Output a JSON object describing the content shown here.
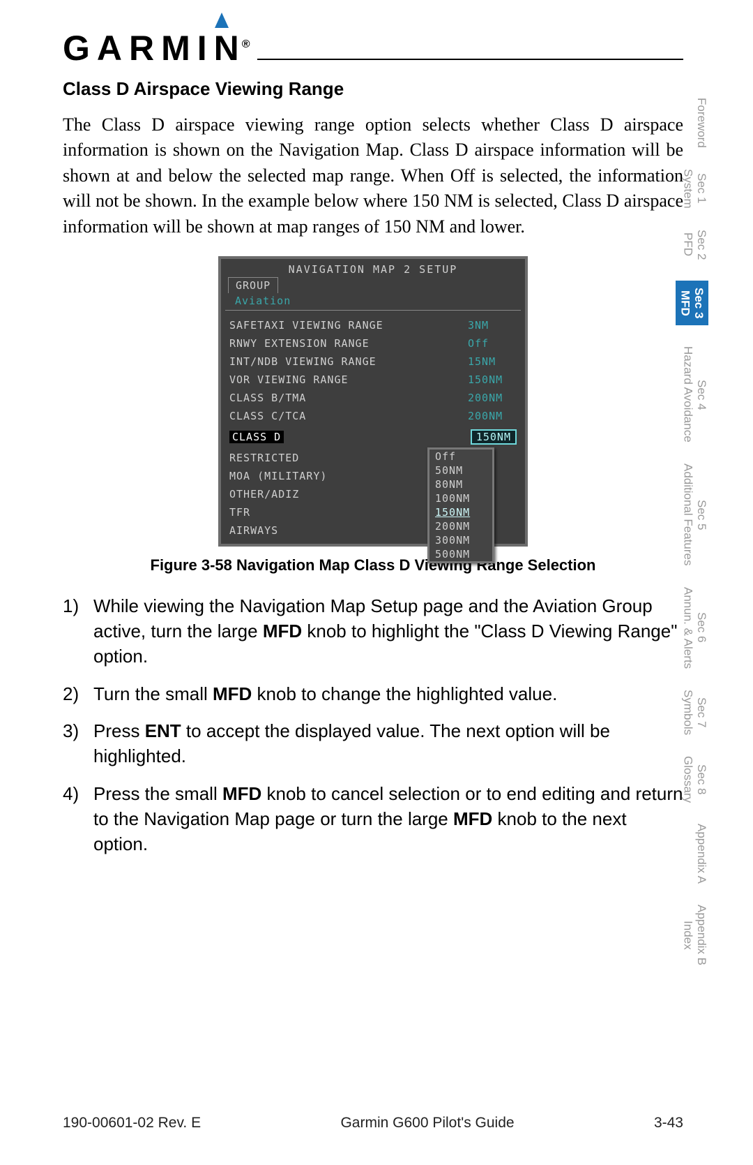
{
  "logo": {
    "text": "GARMIN",
    "reg": "®"
  },
  "section_title": "Class D Airspace Viewing Range",
  "body": "The Class D airspace viewing range option selects whether Class D airspace information is shown on the Navigation Map. Class D airspace information will be shown at and below the selected map range. When Off is selected, the information will not be shown. In the example below where 150 NM is selected, Class D airspace information will be shown at map ranges of 150 NM and lower.",
  "screenshot": {
    "title": "NAVIGATION MAP 2 SETUP",
    "tab_label": "GROUP",
    "tab_value": "Aviation",
    "rows_top": [
      {
        "label": "SAFETAXI VIEWING RANGE",
        "value": "3NM"
      },
      {
        "label": "RNWY EXTENSION RANGE",
        "value": "Off"
      },
      {
        "label": "INT/NDB VIEWING RANGE",
        "value": "15NM"
      },
      {
        "label": "VOR VIEWING RANGE",
        "value": "150NM"
      },
      {
        "label": "CLASS B/TMA",
        "value": "200NM"
      },
      {
        "label": "CLASS C/TCA",
        "value": "200NM"
      }
    ],
    "selected": {
      "label": "CLASS D",
      "value": "150NM"
    },
    "dropdown": [
      "Off",
      "50NM",
      "80NM",
      "100NM",
      "150NM",
      "200NM",
      "300NM",
      "500NM"
    ],
    "dropdown_selected": "150NM",
    "rows_bottom": [
      {
        "label": "RESTRICTED"
      },
      {
        "label": "MOA (MILITARY)"
      },
      {
        "label": "OTHER/ADIZ"
      },
      {
        "label": "TFR"
      },
      {
        "label": "AIRWAYS"
      }
    ]
  },
  "figure_caption": "Figure 3-58  Navigation Map Class D Viewing Range Selection",
  "steps": [
    {
      "n": "1)",
      "pre": "While viewing the Navigation Map Setup page and the Aviation Group active, turn the large ",
      "b1": "MFD",
      "post": " knob to highlight the \"Class D Viewing Range\" option."
    },
    {
      "n": "2)",
      "pre": "Turn the small ",
      "b1": "MFD",
      "post": " knob to change the highlighted value."
    },
    {
      "n": "3)",
      "pre": "Press ",
      "b1": "ENT",
      "post": " to accept the displayed value. The next option will be highlighted."
    },
    {
      "n": "4)",
      "pre": "Press the small ",
      "b1": "MFD",
      "mid": " knob to cancel selection or to end editing and return to the Navigation Map page or turn the large ",
      "b2": "MFD",
      "post": " knob to the next option."
    }
  ],
  "tabs": [
    {
      "l1": "",
      "l2": "Foreword"
    },
    {
      "l1": "Sec 1",
      "l2": "System"
    },
    {
      "l1": "Sec 2",
      "l2": "PFD"
    },
    {
      "l1": "Sec 3",
      "l2": "MFD",
      "active": true
    },
    {
      "l1": "Sec 4",
      "l2": "Hazard Avoidance"
    },
    {
      "l1": "Sec 5",
      "l2": "Additional Features"
    },
    {
      "l1": "Sec 6",
      "l2": "Annun. & Alerts"
    },
    {
      "l1": "Sec 7",
      "l2": "Symbols"
    },
    {
      "l1": "Sec 8",
      "l2": "Glossary"
    },
    {
      "l1": "",
      "l2": "Appendix A"
    },
    {
      "l1": "Appendix B",
      "l2": "Index"
    }
  ],
  "footer": {
    "left": "190-00601-02  Rev. E",
    "center": "Garmin G600 Pilot's Guide",
    "right": "3-43"
  }
}
